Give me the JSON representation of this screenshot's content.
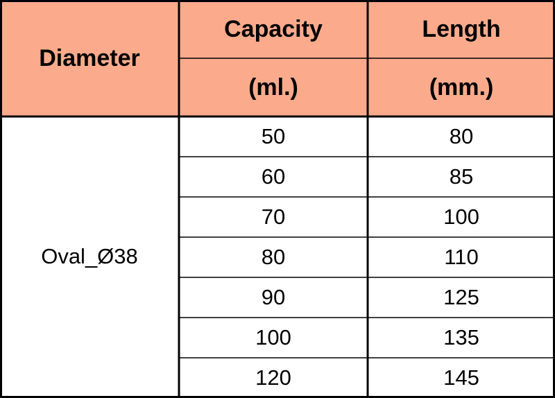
{
  "header": {
    "diameter": "Diameter",
    "capacity": [
      "Capacity",
      "(ml.)"
    ],
    "length": [
      "Length",
      "(mm.)"
    ]
  },
  "table": {
    "diameter": "Oval_Ø38",
    "rows": [
      [
        50,
        80
      ],
      [
        60,
        85
      ],
      [
        70,
        100
      ],
      [
        80,
        110
      ],
      [
        90,
        125
      ],
      [
        100,
        135
      ],
      [
        120,
        145
      ]
    ]
  }
}
